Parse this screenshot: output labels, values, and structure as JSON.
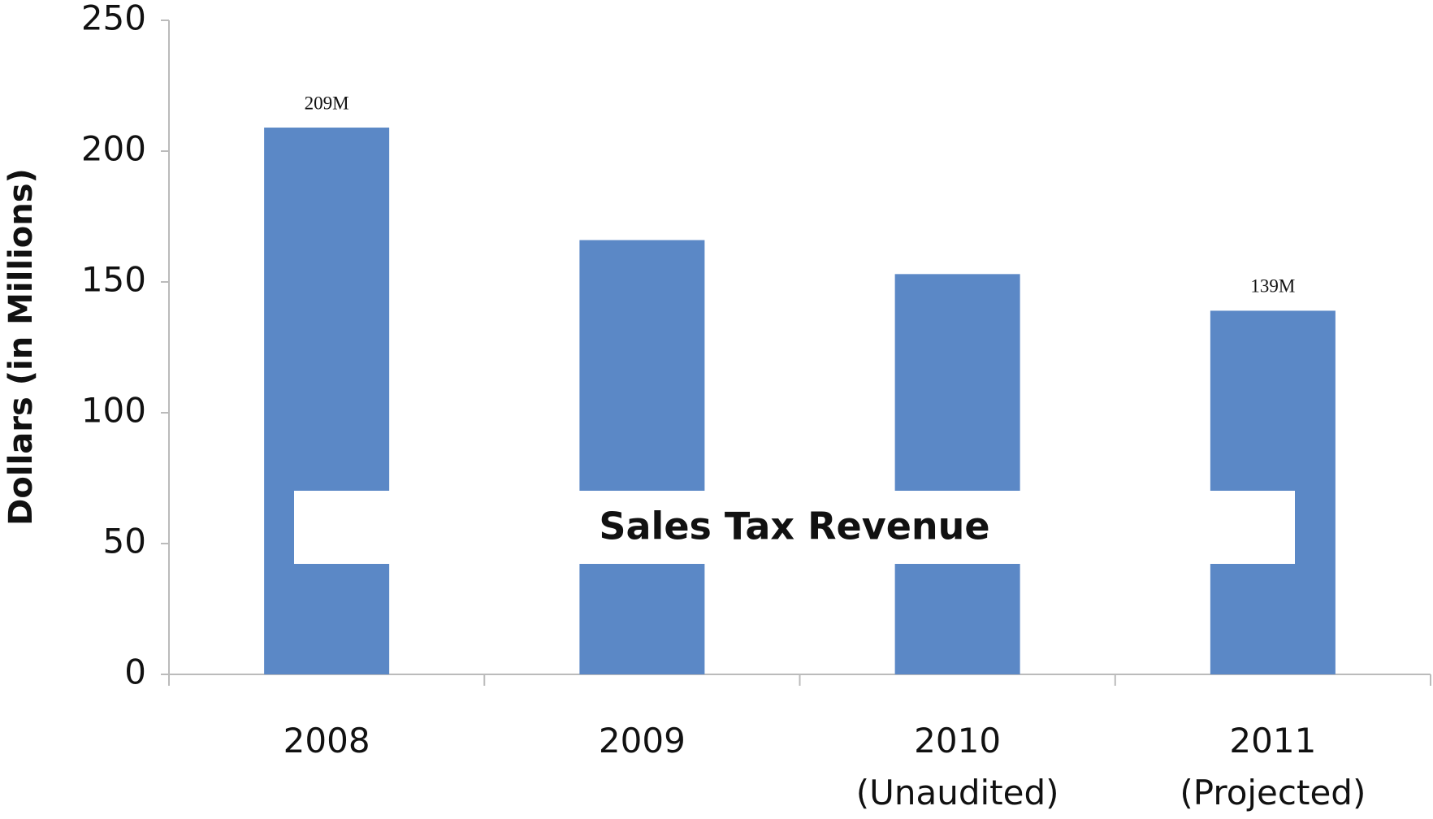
{
  "chart_data": {
    "type": "bar",
    "title": "Sales Tax Revenue",
    "y_label": "Dollars (in Millions)",
    "categories": [
      "2008",
      "2009",
      "2010\n(Unaudited)",
      "2011\n(Projected)"
    ],
    "values": [
      209,
      166,
      153,
      139
    ],
    "value_labels": [
      "209M",
      null,
      null,
      "139M"
    ],
    "color": "#5b88c6",
    "ylim": [
      0,
      250
    ],
    "yticks": [
      0,
      50,
      100,
      150,
      200,
      250
    ],
    "grid": false
  }
}
